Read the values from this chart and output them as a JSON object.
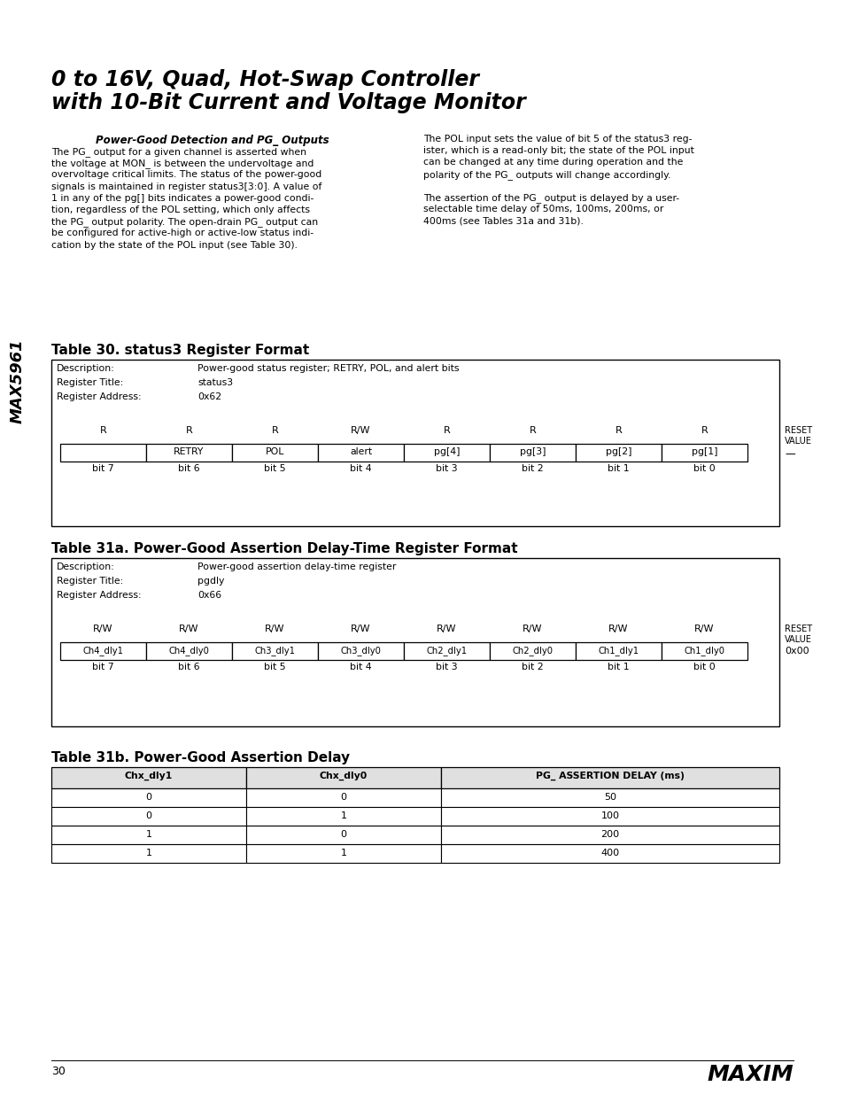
{
  "page_title_line1": "0 to 16V, Quad, Hot-Swap Controller",
  "page_title_line2": "with 10-Bit Current and Voltage Monitor",
  "sidebar_text": "MAX5961",
  "section_heading": "Power-Good Detection and PG_ Outputs",
  "body_left": [
    "The PG_ output for a given channel is asserted when",
    "the voltage at MON_ is between the undervoltage and",
    "overvoltage critical limits. The status of the power-good",
    "signals is maintained in register status3[3:0]. A value of",
    "1 in any of the pg[] bits indicates a power-good condi-",
    "tion, regardless of the POL setting, which only affects",
    "the PG_ output polarity. The open-drain PG_ output can",
    "be configured for active-high or active-low status indi-",
    "cation by the state of the POL input (see Table 30)."
  ],
  "body_right": [
    "The POL input sets the value of bit 5 of the status3 reg-",
    "ister, which is a read-only bit; the state of the POL input",
    "can be changed at any time during operation and the",
    "polarity of the PG_ outputs will change accordingly.",
    "",
    "The assertion of the PG_ output is delayed by a user-",
    "selectable time delay of 50ms, 100ms, 200ms, or",
    "400ms (see Tables 31a and 31b)."
  ],
  "table30_title": "Table 30. status3 Register Format",
  "table30_desc_label": "Description:",
  "table30_desc_value": "Power-good status register; RETRY, POL, and alert bits",
  "table30_reg_title_label": "Register Title:",
  "table30_reg_title_value": "status3",
  "table30_reg_addr_label": "Register Address:",
  "table30_reg_addr_value": "0x62",
  "table30_rw_row": [
    "R",
    "R",
    "R",
    "R/W",
    "R",
    "R",
    "R",
    "R"
  ],
  "table30_reset_label": "RESET\nVALUE",
  "table30_bit_names": [
    "",
    "RETRY",
    "POL",
    "alert",
    "pg[4]",
    "pg[3]",
    "pg[2]",
    "pg[1]"
  ],
  "table30_reset_value": "—",
  "table30_bit_nums": [
    "bit 7",
    "bit 6",
    "bit 5",
    "bit 4",
    "bit 3",
    "bit 2",
    "bit 1",
    "bit 0"
  ],
  "table31a_title": "Table 31a. Power-Good Assertion Delay-Time Register Format",
  "table31a_desc_label": "Description:",
  "table31a_desc_value": "Power-good assertion delay-time register",
  "table31a_reg_title_label": "Register Title:",
  "table31a_reg_title_value": "pgdly",
  "table31a_reg_addr_label": "Register Address:",
  "table31a_reg_addr_value": "0x66",
  "table31a_rw_row": [
    "R/W",
    "R/W",
    "R/W",
    "R/W",
    "R/W",
    "R/W",
    "R/W",
    "R/W"
  ],
  "table31a_reset_label": "RESET\nVALUE",
  "table31a_bit_names": [
    "Ch4_dly1",
    "Ch4_dly0",
    "Ch3_dly1",
    "Ch3_dly0",
    "Ch2_dly1",
    "Ch2_dly0",
    "Ch1_dly1",
    "Ch1_dly0"
  ],
  "table31a_reset_value": "0x00",
  "table31a_bit_nums": [
    "bit 7",
    "bit 6",
    "bit 5",
    "bit 4",
    "bit 3",
    "bit 2",
    "bit 1",
    "bit 0"
  ],
  "table31b_title": "Table 31b. Power-Good Assertion Delay",
  "table31b_headers": [
    "Chx_dly1",
    "Chx_dly0",
    "PG_ ASSERTION DELAY (ms)"
  ],
  "table31b_data": [
    [
      "0",
      "0",
      "50"
    ],
    [
      "0",
      "1",
      "100"
    ],
    [
      "1",
      "0",
      "200"
    ],
    [
      "1",
      "1",
      "400"
    ]
  ],
  "footer_page": "30",
  "footer_logo": "MAXIM",
  "bg_color": "#ffffff",
  "text_color": "#000000"
}
